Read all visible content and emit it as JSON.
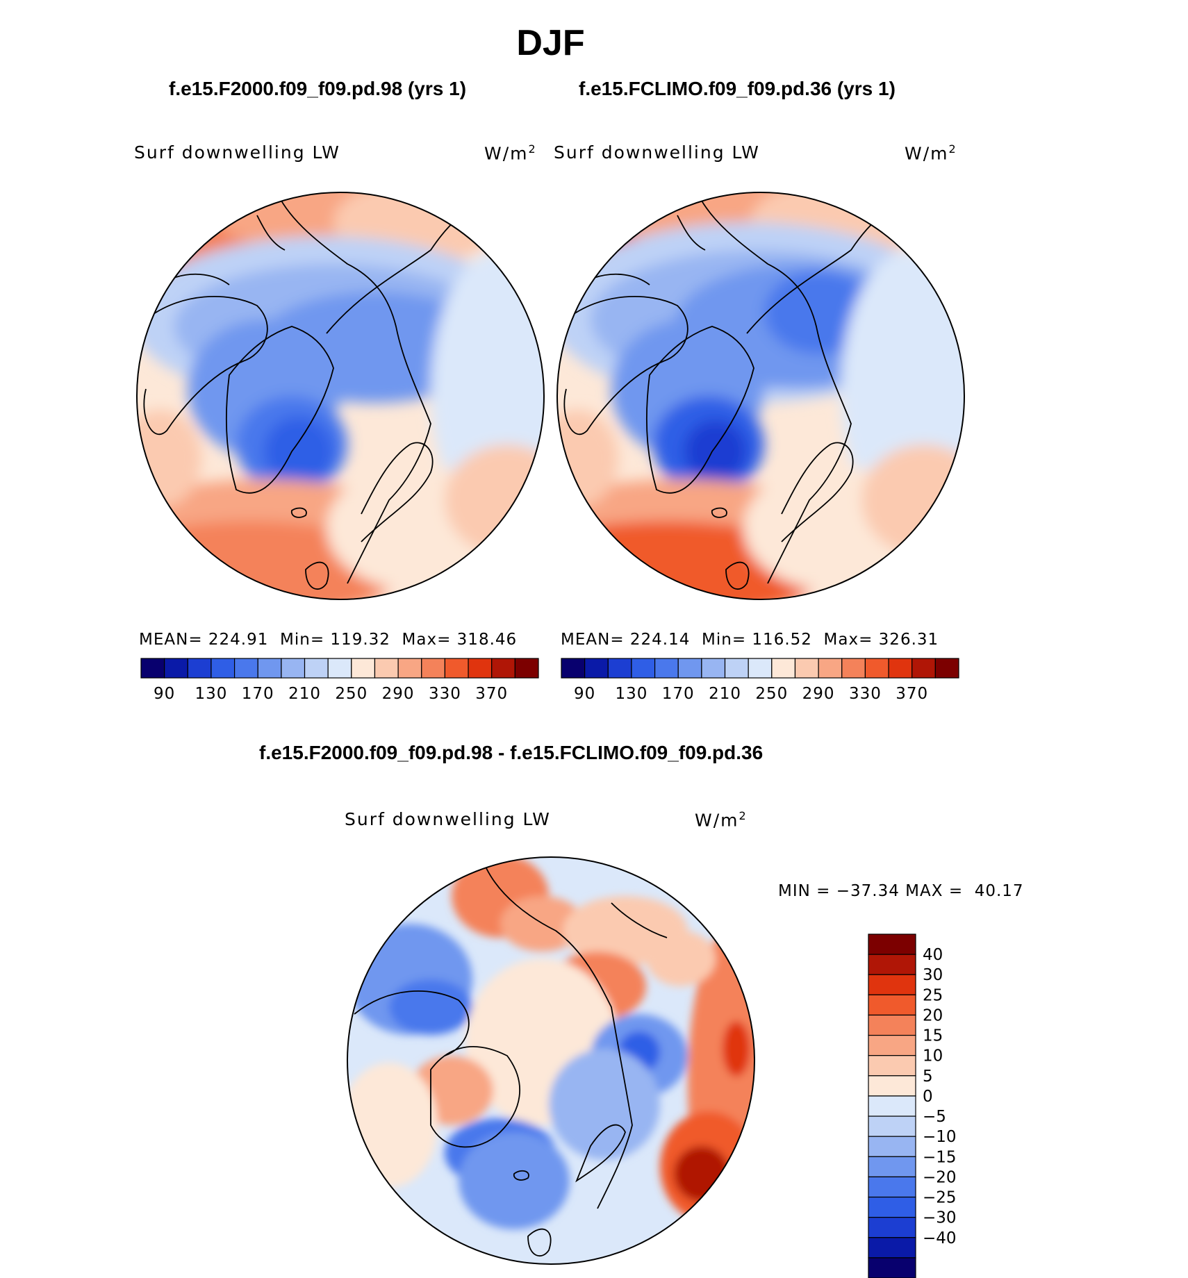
{
  "title": "DJF",
  "chart_data": [
    {
      "type": "heatmap",
      "panel_title": "f.e15.F2000.f09_f09.pd.98 (yrs 1)",
      "variable": "Surf downwelling LW",
      "units": "W/m",
      "units_sup": "2",
      "stats": {
        "mean_label": "MEAN=",
        "mean": "224.91",
        "min_label": "Min=",
        "min": "119.32",
        "max_label": "Max=",
        "max": "318.46"
      },
      "colorbar": {
        "levels": [
          90,
          110,
          130,
          150,
          170,
          190,
          210,
          230,
          250,
          270,
          290,
          310,
          330,
          350,
          370
        ],
        "tick_labels": [
          "90",
          "130",
          "170",
          "210",
          "250",
          "290",
          "330",
          "370"
        ]
      }
    },
    {
      "type": "heatmap",
      "panel_title": "f.e15.FCLIMO.f09_f09.pd.36 (yrs 1)",
      "variable": "Surf downwelling LW",
      "units": "W/m",
      "units_sup": "2",
      "stats": {
        "mean_label": "MEAN=",
        "mean": "224.14",
        "min_label": "Min=",
        "min": "116.52",
        "max_label": "Max=",
        "max": "326.31"
      },
      "colorbar": {
        "levels": [
          90,
          110,
          130,
          150,
          170,
          190,
          210,
          230,
          250,
          270,
          290,
          310,
          330,
          350,
          370
        ],
        "tick_labels": [
          "90",
          "130",
          "170",
          "210",
          "250",
          "290",
          "330",
          "370"
        ]
      }
    },
    {
      "type": "heatmap",
      "panel_title": "f.e15.F2000.f09_f09.pd.98 - f.e15.FCLIMO.f09_f09.pd.36",
      "variable": "Surf downwelling LW",
      "units": "W/m",
      "units_sup": "2",
      "stats": {
        "min_label": "MIN =",
        "min": "−37.34",
        "max_label": "MAX =",
        "max": "40.17"
      },
      "colorbar": {
        "levels": [
          40,
          30,
          25,
          20,
          15,
          10,
          5,
          0,
          -5,
          -10,
          -15,
          -20,
          -25,
          -30,
          -40
        ],
        "tick_labels": [
          "40",
          "30",
          "25",
          "20",
          "15",
          "10",
          "5",
          "0",
          "−5",
          "−10",
          "−15",
          "−20",
          "−25",
          "−30",
          "−40"
        ]
      }
    }
  ],
  "colors": {
    "scale": [
      "#08006e",
      "#0a1aa8",
      "#1c3ed2",
      "#2f5ee6",
      "#4a78ec",
      "#7097ef",
      "#98b5f2",
      "#bed2f6",
      "#dbe8fa",
      "#fde8d8",
      "#fbcab0",
      "#f8a684",
      "#f4825a",
      "#f05a2c",
      "#e0340e",
      "#b01606",
      "#7c0000"
    ]
  }
}
